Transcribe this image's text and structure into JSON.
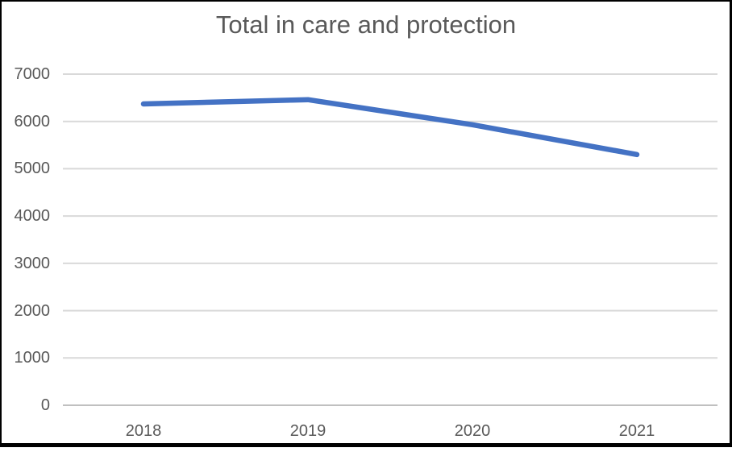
{
  "chart_data": {
    "type": "line",
    "title": "Total in care and protection",
    "categories": [
      "2018",
      "2019",
      "2020",
      "2021"
    ],
    "series": [
      {
        "values": [
          6370,
          6460,
          5930,
          5300
        ]
      }
    ],
    "xlabel": "",
    "ylabel": "",
    "ylim": [
      0,
      7000
    ],
    "ytick_step": 1000,
    "y_tick_labels": [
      "0",
      "1000",
      "2000",
      "3000",
      "4000",
      "5000",
      "6000",
      "7000"
    ],
    "grid": "horizontal",
    "legend_position": "none",
    "colors": {
      "line": "#4472C4",
      "gridline": "#D9D9D9",
      "axis": "#C0C0C0",
      "text": "#595959",
      "frame": "#000000"
    }
  }
}
